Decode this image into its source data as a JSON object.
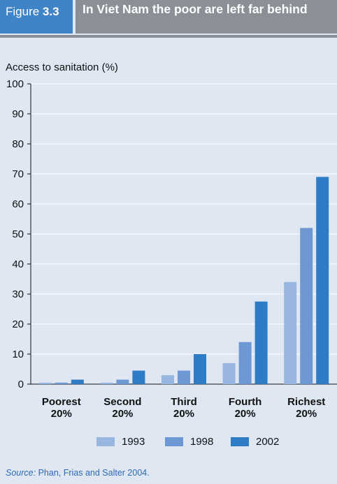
{
  "figure": {
    "label_prefix": "Figure",
    "label_number": "3.3",
    "title": "In Viet Nam the poor are left far behind"
  },
  "source": {
    "label": "Source:",
    "text": "Phan, Frias and Salter 2004."
  },
  "chart_data": {
    "type": "bar",
    "ylabel": "Access to sanitation (%)",
    "ylim": [
      0,
      100
    ],
    "yticks": [
      0,
      10,
      20,
      30,
      40,
      50,
      60,
      70,
      80,
      90,
      100
    ],
    "grid": true,
    "legend_position": "bottom",
    "categories": [
      {
        "line1": "Poorest",
        "line2": "20%"
      },
      {
        "line1": "Second",
        "line2": "20%"
      },
      {
        "line1": "Third",
        "line2": "20%"
      },
      {
        "line1": "Fourth",
        "line2": "20%"
      },
      {
        "line1": "Richest",
        "line2": "20%"
      }
    ],
    "series": [
      {
        "name": "1993",
        "color": "#98b6e0",
        "values": [
          0.5,
          0.5,
          3,
          7,
          34
        ]
      },
      {
        "name": "1998",
        "color": "#6d98d3",
        "values": [
          0.5,
          1.5,
          4.5,
          14,
          52
        ]
      },
      {
        "name": "2002",
        "color": "#2f7cc6",
        "values": [
          1.5,
          4.5,
          10,
          27.5,
          69
        ]
      }
    ]
  }
}
